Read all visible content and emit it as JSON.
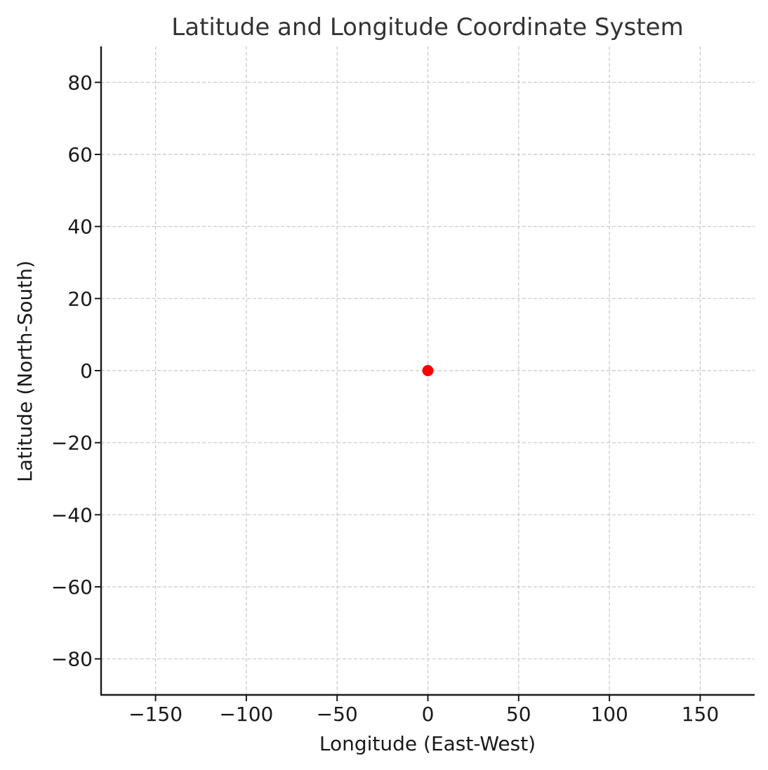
{
  "chart_data": {
    "type": "scatter",
    "title": "Latitude and Longitude Coordinate System",
    "xlabel": "Longitude (East-West)",
    "ylabel": "Latitude (North-South)",
    "xlim": [
      -180,
      180
    ],
    "ylim": [
      -90,
      90
    ],
    "xticks": [
      -150,
      -100,
      -50,
      0,
      50,
      100,
      150
    ],
    "yticks": [
      80,
      60,
      40,
      20,
      0,
      -20,
      -40,
      -60,
      -80
    ],
    "xtick_labels": [
      "−150",
      "−100",
      "−50",
      "0",
      "50",
      "100",
      "150"
    ],
    "ytick_labels": [
      "80",
      "60",
      "40",
      "20",
      "0",
      "−20",
      "−40",
      "−60",
      "−80"
    ],
    "grid": true,
    "points": [
      {
        "x": 0,
        "y": 0,
        "color": "#ff0000"
      }
    ]
  }
}
